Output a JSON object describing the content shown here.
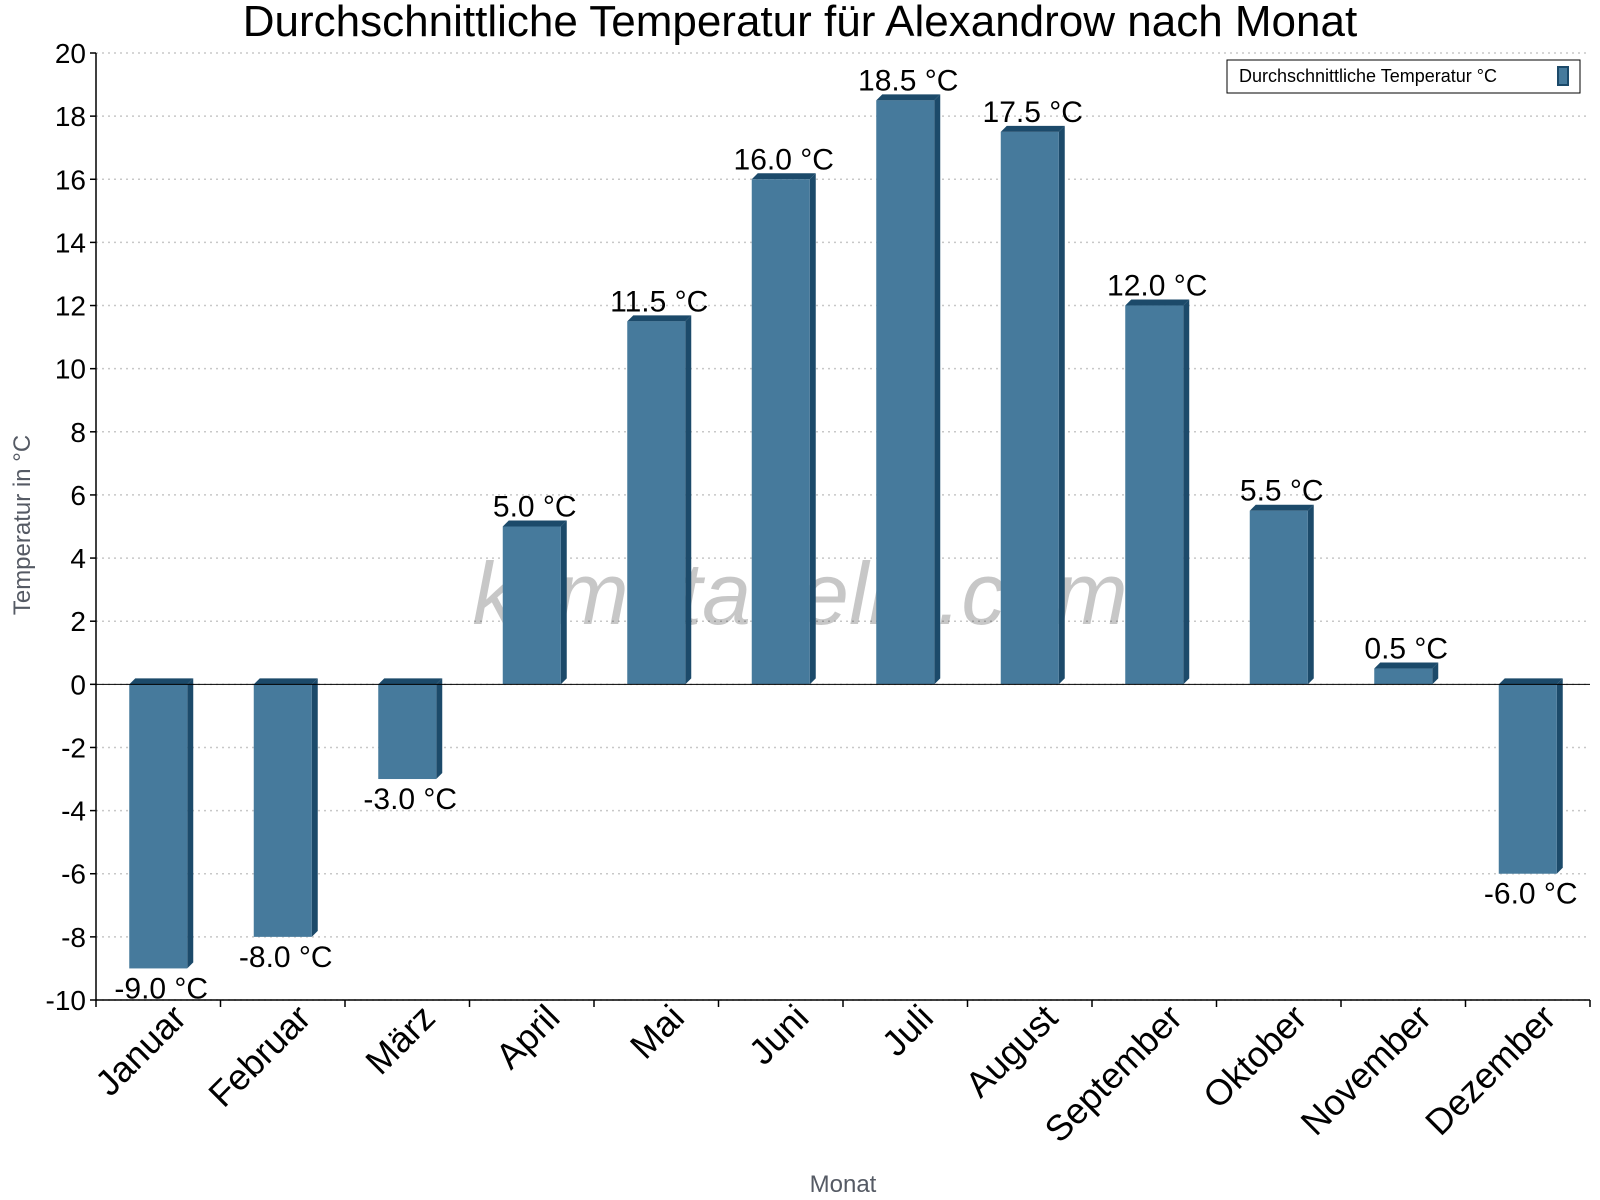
{
  "chart_data": {
    "type": "bar",
    "title": "Durchschnittliche Temperatur für Alexandrow nach Monat",
    "xlabel": "Monat",
    "ylabel": "Temperatur in °C",
    "ylim": [
      -10,
      20
    ],
    "yticks": [
      20,
      18,
      16,
      14,
      12,
      10,
      8,
      6,
      4,
      2,
      0,
      -2,
      -4,
      -6,
      -8,
      -10
    ],
    "grid": true,
    "legend_position": "top-right",
    "categories": [
      "Januar",
      "Februar",
      "März",
      "April",
      "Mai",
      "Juni",
      "Juli",
      "August",
      "September",
      "Oktober",
      "November",
      "Dezember"
    ],
    "series": [
      {
        "name": "Durchschnittliche Temperatur °C",
        "values": [
          -9.0,
          -8.0,
          -3.0,
          5.0,
          11.5,
          16.0,
          18.5,
          17.5,
          12.0,
          5.5,
          0.5,
          -6.0
        ],
        "labels": [
          "-9.0 °C",
          "-8.0 °C",
          "-3.0 °C",
          "5.0 °C",
          "11.5 °C",
          "16.0 °C",
          "18.5 °C",
          "17.5 °C",
          "12.0 °C",
          "5.5 °C",
          "0.5 °C",
          "-6.0 °C"
        ]
      }
    ],
    "colors": {
      "bar": "#467a9c",
      "bar_side": "#1c4a6a",
      "grid": "#c8c8c8",
      "axis": "#000000"
    },
    "watermark": "klimatabelle.com"
  }
}
